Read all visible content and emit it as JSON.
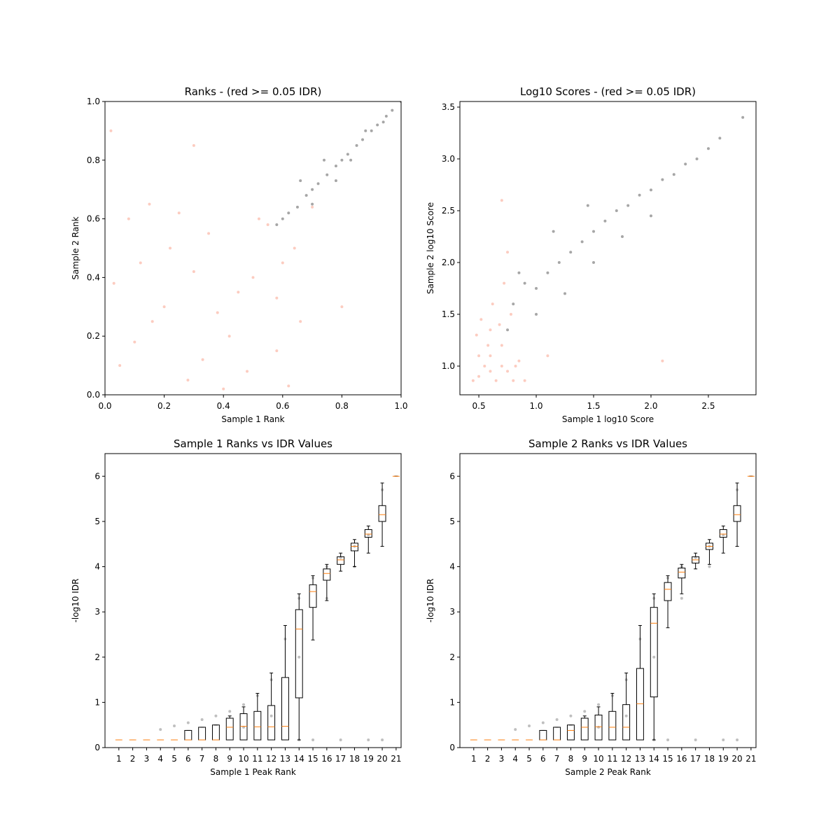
{
  "chart_data": [
    {
      "type": "scatter",
      "title": "Ranks - (red >= 0.05 IDR)",
      "xlabel": "Sample 1 Rank",
      "ylabel": "Sample 2 Rank",
      "xlim": [
        0,
        1
      ],
      "ylim": [
        0,
        1
      ],
      "xticks": [
        {
          "value": 0,
          "label": "0.0"
        },
        0.2,
        0.4,
        0.6,
        0.8,
        {
          "value": 1,
          "label": "1.0"
        }
      ],
      "yticks": [
        {
          "value": 0,
          "label": "0.0"
        },
        0.2,
        0.4,
        0.6,
        0.8,
        {
          "value": 1,
          "label": "1.0"
        }
      ],
      "series": [
        {
          "color": "#fa9a82",
          "x": [
            0.05,
            0.12,
            0.2,
            0.28,
            0.35,
            0.42,
            0.5,
            0.58,
            0.64,
            0.08,
            0.16,
            0.25,
            0.33,
            0.45,
            0.55,
            0.62,
            0.03,
            0.22,
            0.38,
            0.48,
            0.6,
            0.1,
            0.3,
            0.52,
            0.66,
            0.4,
            0.15,
            0.58,
            0.7,
            0.02,
            0.3,
            0.8
          ],
          "y": [
            0.1,
            0.45,
            0.3,
            0.05,
            0.55,
            0.2,
            0.4,
            0.15,
            0.5,
            0.6,
            0.25,
            0.62,
            0.12,
            0.35,
            0.58,
            0.03,
            0.38,
            0.5,
            0.28,
            0.08,
            0.45,
            0.18,
            0.42,
            0.6,
            0.25,
            0.02,
            0.65,
            0.33,
            0.64,
            0.9,
            0.85,
            0.3
          ]
        },
        {
          "color": "#000000",
          "x": [
            0.58,
            0.6,
            0.62,
            0.65,
            0.68,
            0.7,
            0.72,
            0.75,
            0.78,
            0.8,
            0.82,
            0.85,
            0.87,
            0.9,
            0.92,
            0.95,
            0.97,
            1.0,
            0.66,
            0.74,
            0.83,
            0.88,
            0.94,
            0.7,
            0.78
          ],
          "y": [
            0.58,
            0.6,
            0.62,
            0.64,
            0.68,
            0.7,
            0.72,
            0.75,
            0.78,
            0.8,
            0.82,
            0.85,
            0.87,
            0.9,
            0.92,
            0.95,
            0.97,
            1.0,
            0.73,
            0.8,
            0.8,
            0.9,
            0.93,
            0.65,
            0.73
          ]
        }
      ]
    },
    {
      "type": "scatter",
      "title": "Log10 Scores - (red >= 0.05 IDR)",
      "xlabel": "Sample 1 log10 Score",
      "ylabel": "Sample 2 log10 Score",
      "xlim": [
        0.335,
        2.915
      ],
      "ylim": [
        0.723,
        3.554
      ],
      "xticks": [
        0.5,
        {
          "value": 1,
          "label": "1.0"
        },
        1.5,
        {
          "value": 2,
          "label": "2.0"
        },
        2.5
      ],
      "yticks": [
        {
          "value": 1,
          "label": "1.0"
        },
        1.5,
        {
          "value": 2,
          "label": "2.0"
        },
        2.5,
        {
          "value": 3,
          "label": "3.0"
        },
        3.5
      ],
      "series": [
        {
          "color": "#fa9a82",
          "x": [
            0.45,
            0.5,
            0.55,
            0.6,
            0.65,
            0.7,
            0.75,
            0.8,
            0.85,
            0.9,
            0.48,
            0.52,
            0.58,
            0.62,
            0.68,
            0.72,
            0.78,
            0.82,
            0.5,
            0.6,
            0.7,
            0.75,
            0.7,
            0.6,
            1.1,
            2.1
          ],
          "y": [
            0.86,
            0.9,
            1.0,
            1.1,
            0.86,
            1.2,
            0.95,
            0.86,
            1.05,
            0.86,
            1.3,
            1.45,
            1.2,
            1.6,
            1.4,
            1.8,
            1.5,
            1.0,
            1.1,
            0.95,
            1.0,
            2.1,
            2.6,
            1.35,
            1.1,
            1.05
          ]
        },
        {
          "color": "#000000",
          "x": [
            0.75,
            0.8,
            0.9,
            1.0,
            1.1,
            1.2,
            1.3,
            1.4,
            1.5,
            1.6,
            1.7,
            1.8,
            1.9,
            2.0,
            2.1,
            2.2,
            2.3,
            2.4,
            2.5,
            2.6,
            2.8,
            0.85,
            1.0,
            1.25,
            1.5,
            1.75,
            2.0,
            1.15,
            1.45
          ],
          "y": [
            1.35,
            1.6,
            1.8,
            1.75,
            1.9,
            2.0,
            2.1,
            2.2,
            2.3,
            2.4,
            2.5,
            2.55,
            2.65,
            2.7,
            2.8,
            2.85,
            2.95,
            3.0,
            3.1,
            3.2,
            3.4,
            1.9,
            1.5,
            1.7,
            2.0,
            2.25,
            2.45,
            2.3,
            2.55
          ]
        }
      ]
    },
    {
      "type": "box",
      "title": "Sample 1 Ranks vs IDR Values",
      "xlabel": "Sample 1 Peak Rank",
      "ylabel": "-log10 IDR",
      "xlim": [
        0,
        21.36
      ],
      "ylim": [
        0,
        6.5
      ],
      "xticks": [
        1,
        2,
        3,
        4,
        5,
        6,
        7,
        8,
        9,
        10,
        11,
        12,
        13,
        14,
        15,
        16,
        17,
        18,
        19,
        20,
        21
      ],
      "yticks": [
        0,
        1,
        2,
        3,
        4,
        5,
        6
      ],
      "points": {
        "color": "#000000",
        "x": [
          4,
          5,
          6,
          7,
          8,
          9,
          10,
          11,
          12,
          13,
          14,
          15,
          16,
          17,
          18,
          19,
          20,
          10,
          12,
          14,
          16,
          18,
          14,
          15,
          17,
          19,
          20
        ],
        "y": [
          0.4,
          0.48,
          0.55,
          0.62,
          0.7,
          0.8,
          0.95,
          1.15,
          1.5,
          2.4,
          3.3,
          3.75,
          4.0,
          4.2,
          4.45,
          4.7,
          5.7,
          0.45,
          0.7,
          2.0,
          3.3,
          4.0,
          0.17,
          0.17,
          0.17,
          0.17,
          0.17
        ]
      },
      "boxes": [
        {
          "q1": 0.17,
          "median": 0.17,
          "q3": 0.17,
          "whislo": 0.17,
          "whishi": 0.17
        },
        {
          "q1": 0.17,
          "median": 0.17,
          "q3": 0.17,
          "whislo": 0.17,
          "whishi": 0.17
        },
        {
          "q1": 0.17,
          "median": 0.17,
          "q3": 0.17,
          "whislo": 0.17,
          "whishi": 0.17
        },
        {
          "q1": 0.17,
          "median": 0.17,
          "q3": 0.17,
          "whislo": 0.17,
          "whishi": 0.17
        },
        {
          "q1": 0.17,
          "median": 0.17,
          "q3": 0.17,
          "whislo": 0.17,
          "whishi": 0.17
        },
        {
          "q1": 0.17,
          "median": 0.17,
          "q3": 0.38,
          "whislo": 0.17,
          "whishi": 0.38
        },
        {
          "q1": 0.17,
          "median": 0.17,
          "q3": 0.45,
          "whislo": 0.17,
          "whishi": 0.45
        },
        {
          "q1": 0.17,
          "median": 0.17,
          "q3": 0.5,
          "whislo": 0.17,
          "whishi": 0.5
        },
        {
          "q1": 0.17,
          "median": 0.45,
          "q3": 0.65,
          "whislo": 0.17,
          "whishi": 0.7
        },
        {
          "q1": 0.17,
          "median": 0.47,
          "q3": 0.75,
          "whislo": 0.17,
          "whishi": 0.9
        },
        {
          "q1": 0.17,
          "median": 0.46,
          "q3": 0.8,
          "whislo": 0.17,
          "whishi": 1.2
        },
        {
          "q1": 0.17,
          "median": 0.46,
          "q3": 0.93,
          "whislo": 0.17,
          "whishi": 1.65
        },
        {
          "q1": 0.17,
          "median": 0.47,
          "q3": 1.55,
          "whislo": 0.17,
          "whishi": 2.7
        },
        {
          "q1": 1.1,
          "median": 2.62,
          "q3": 3.05,
          "whislo": 0.17,
          "whishi": 3.4
        },
        {
          "q1": 3.1,
          "median": 3.45,
          "q3": 3.6,
          "whislo": 2.38,
          "whishi": 3.8
        },
        {
          "q1": 3.7,
          "median": 3.85,
          "q3": 3.95,
          "whislo": 3.25,
          "whishi": 4.05
        },
        {
          "q1": 4.05,
          "median": 4.15,
          "q3": 4.22,
          "whislo": 3.9,
          "whishi": 4.3
        },
        {
          "q1": 4.35,
          "median": 4.45,
          "q3": 4.52,
          "whislo": 4.0,
          "whishi": 4.6
        },
        {
          "q1": 4.65,
          "median": 4.72,
          "q3": 4.82,
          "whislo": 4.3,
          "whishi": 4.9
        },
        {
          "q1": 5.0,
          "median": 5.15,
          "q3": 5.35,
          "whislo": 4.45,
          "whishi": 5.85
        },
        {
          "q1": 6,
          "median": 6,
          "q3": 6,
          "whislo": 6,
          "whishi": 6
        }
      ]
    },
    {
      "type": "box",
      "title": "Sample 2 Ranks vs IDR Values",
      "xlabel": "Sample 2 Peak Rank",
      "ylabel": "-log10 IDR",
      "xlim": [
        0,
        21.36
      ],
      "ylim": [
        0,
        6.5
      ],
      "xticks": [
        1,
        2,
        3,
        4,
        5,
        6,
        7,
        8,
        9,
        10,
        11,
        12,
        13,
        14,
        15,
        16,
        17,
        18,
        19,
        20,
        21
      ],
      "yticks": [
        0,
        1,
        2,
        3,
        4,
        5,
        6
      ],
      "points": {
        "color": "#000000",
        "x": [
          4,
          5,
          6,
          7,
          8,
          9,
          10,
          11,
          12,
          13,
          14,
          15,
          16,
          17,
          18,
          19,
          20,
          10,
          12,
          14,
          16,
          18,
          14,
          15,
          17,
          19,
          20
        ],
        "y": [
          0.4,
          0.48,
          0.55,
          0.62,
          0.7,
          0.8,
          0.95,
          1.15,
          1.5,
          2.4,
          3.3,
          3.75,
          4.0,
          4.2,
          4.45,
          4.7,
          5.7,
          0.45,
          0.7,
          2.0,
          3.3,
          4.0,
          0.17,
          0.17,
          0.17,
          0.17,
          0.17
        ]
      },
      "boxes": [
        {
          "q1": 0.17,
          "median": 0.17,
          "q3": 0.17,
          "whislo": 0.17,
          "whishi": 0.17
        },
        {
          "q1": 0.17,
          "median": 0.17,
          "q3": 0.17,
          "whislo": 0.17,
          "whishi": 0.17
        },
        {
          "q1": 0.17,
          "median": 0.17,
          "q3": 0.17,
          "whislo": 0.17,
          "whishi": 0.17
        },
        {
          "q1": 0.17,
          "median": 0.17,
          "q3": 0.17,
          "whislo": 0.17,
          "whishi": 0.17
        },
        {
          "q1": 0.17,
          "median": 0.17,
          "q3": 0.17,
          "whislo": 0.17,
          "whishi": 0.17
        },
        {
          "q1": 0.17,
          "median": 0.17,
          "q3": 0.38,
          "whislo": 0.17,
          "whishi": 0.38
        },
        {
          "q1": 0.17,
          "median": 0.17,
          "q3": 0.45,
          "whislo": 0.17,
          "whishi": 0.45
        },
        {
          "q1": 0.17,
          "median": 0.38,
          "q3": 0.5,
          "whislo": 0.17,
          "whishi": 0.5
        },
        {
          "q1": 0.17,
          "median": 0.45,
          "q3": 0.65,
          "whislo": 0.17,
          "whishi": 0.7
        },
        {
          "q1": 0.17,
          "median": 0.46,
          "q3": 0.72,
          "whislo": 0.17,
          "whishi": 0.9
        },
        {
          "q1": 0.17,
          "median": 0.45,
          "q3": 0.8,
          "whislo": 0.17,
          "whishi": 1.2
        },
        {
          "q1": 0.17,
          "median": 0.45,
          "q3": 0.95,
          "whislo": 0.17,
          "whishi": 1.65
        },
        {
          "q1": 0.17,
          "median": 0.97,
          "q3": 1.75,
          "whislo": 0.17,
          "whishi": 2.7
        },
        {
          "q1": 1.12,
          "median": 2.75,
          "q3": 3.1,
          "whislo": 0.17,
          "whishi": 3.4
        },
        {
          "q1": 3.25,
          "median": 3.5,
          "q3": 3.65,
          "whislo": 2.65,
          "whishi": 3.8
        },
        {
          "q1": 3.75,
          "median": 3.88,
          "q3": 3.97,
          "whislo": 3.4,
          "whishi": 4.05
        },
        {
          "q1": 4.08,
          "median": 4.15,
          "q3": 4.22,
          "whislo": 3.95,
          "whishi": 4.3
        },
        {
          "q1": 4.38,
          "median": 4.45,
          "q3": 4.52,
          "whislo": 4.05,
          "whishi": 4.6
        },
        {
          "q1": 4.65,
          "median": 4.72,
          "q3": 4.82,
          "whislo": 4.3,
          "whishi": 4.9
        },
        {
          "q1": 5.0,
          "median": 5.15,
          "q3": 5.35,
          "whislo": 4.45,
          "whishi": 5.85
        },
        {
          "q1": 6,
          "median": 6,
          "q3": 6,
          "whislo": 6,
          "whishi": 6
        }
      ]
    }
  ]
}
